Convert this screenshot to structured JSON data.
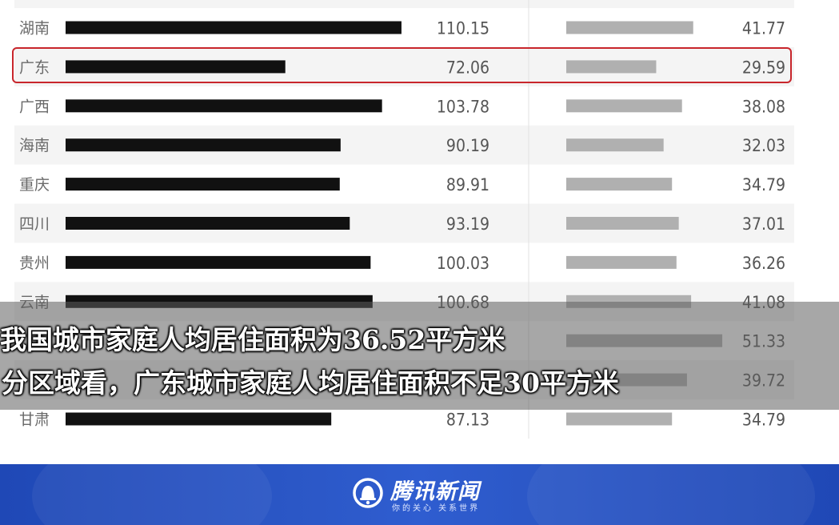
{
  "chart_data": {
    "type": "bar",
    "categories": [
      "湖南",
      "广东",
      "广西",
      "海南",
      "重庆",
      "四川",
      "贵州",
      "云南",
      "",
      "",
      "甘肃"
    ],
    "series": [
      {
        "values": [
          110.15,
          72.06,
          103.78,
          90.19,
          89.91,
          93.19,
          100.03,
          100.68,
          null,
          null,
          87.13
        ]
      },
      {
        "values": [
          41.77,
          29.59,
          38.08,
          32.03,
          34.79,
          37.01,
          36.26,
          41.08,
          51.33,
          39.72,
          34.79
        ]
      }
    ],
    "value_labels": {
      "left": [
        "110.15",
        "72.06",
        "103.78",
        "90.19",
        "89.91",
        "93.19",
        "100.03",
        "100.68",
        "",
        "",
        "87.13"
      ],
      "right": [
        "41.77",
        "29.59",
        "38.08",
        "32.03",
        "34.79",
        "37.01",
        "36.26",
        "41.08",
        "51.33",
        "39.72",
        "34.79"
      ]
    },
    "highlight_category": "广东",
    "colors": {
      "left_bar": "#111111",
      "right_bar": "#b0b0b0",
      "highlight_border": "#c8262c"
    }
  },
  "caption": {
    "line1": "我国城市家庭人均居住面积为36.52平方米",
    "line2": "分区域看，广东城市家庭人均居住面积不足30平方米"
  },
  "footer": {
    "brand": "腾讯新闻",
    "slogan": "你的关心 关系世界",
    "icon": "tencent-news-bell-icon"
  }
}
